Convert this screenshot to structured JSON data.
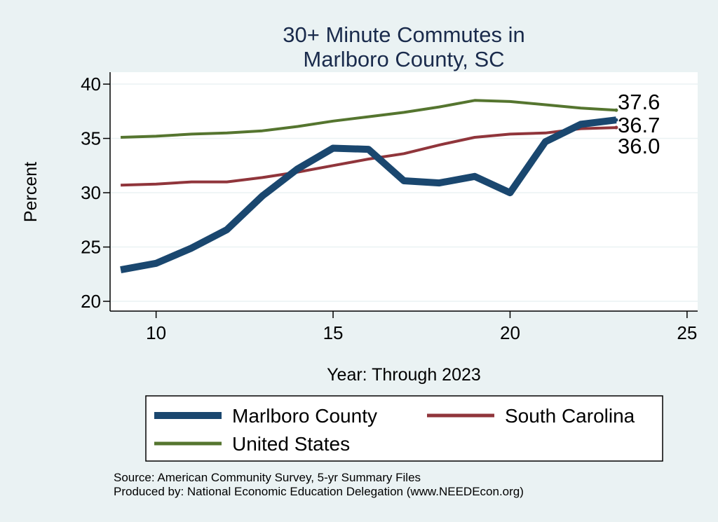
{
  "chart_data": {
    "type": "line",
    "title_lines": [
      "30+ Minute Commutes in",
      "Marlboro County, SC"
    ],
    "xlabel": "Year: Through 2023",
    "ylabel": "Percent",
    "xlim": [
      8.7,
      25.3
    ],
    "ylim": [
      19.1,
      41.1
    ],
    "xticks": [
      10,
      15,
      20,
      25
    ],
    "yticks": [
      20,
      25,
      30,
      35,
      40
    ],
    "grid": true,
    "legend_position": "bottom",
    "x": [
      9,
      10,
      11,
      12,
      13,
      14,
      15,
      16,
      17,
      18,
      19,
      20,
      21,
      22,
      23
    ],
    "series": [
      {
        "name": "Marlboro County",
        "color": "#1a476f",
        "values": [
          22.9,
          23.5,
          24.9,
          26.6,
          29.7,
          32.2,
          34.1,
          34.0,
          31.1,
          30.9,
          31.5,
          30.0,
          34.7,
          36.3,
          36.7
        ],
        "end_label": "36.7"
      },
      {
        "name": "South Carolina",
        "color": "#90353b",
        "values": [
          30.7,
          30.8,
          31.0,
          31.0,
          31.4,
          31.9,
          32.5,
          33.1,
          33.6,
          34.4,
          35.1,
          35.4,
          35.5,
          35.9,
          36.0
        ],
        "end_label": "36.0"
      },
      {
        "name": "United States",
        "color": "#55752f",
        "values": [
          35.1,
          35.2,
          35.4,
          35.5,
          35.7,
          36.1,
          36.6,
          37.0,
          37.4,
          37.9,
          38.5,
          38.4,
          38.1,
          37.8,
          37.6
        ],
        "end_label": "37.6"
      }
    ]
  },
  "notes": {
    "source": "Source: American Community Survey, 5-yr Summary Files",
    "produced_by": "Produced by: National Economic Education Delegation (www.NEEDEcon.org)"
  }
}
